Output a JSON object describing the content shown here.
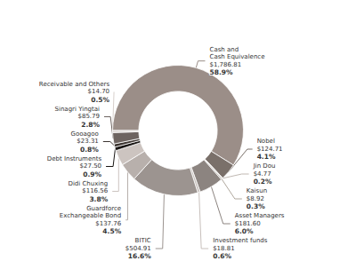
{
  "chart_data": {
    "type": "pie",
    "categories": [
      "Cash and\nCash Equivalence\n$1,786.81",
      "Nobel\n$124.71",
      "Jin Dou\n$4.77",
      "Kaisun\n$8.92",
      "Asset Managers\n$181.60",
      "Investment funds\n$18.81",
      "BITIC\n$504.91",
      "Guardforce\nExchangeable Bond\n$137.76",
      "Didi Chuxing\n$116.56",
      "Debt Instruments\n$27.50",
      "Gooagoo\n$23.31",
      "Sinagri Yingtai\n$85.79",
      "Receivable and Others\n$14.70"
    ],
    "values": [
      58.9,
      4.1,
      0.2,
      0.3,
      6.0,
      0.6,
      16.6,
      4.5,
      3.8,
      0.9,
      0.8,
      2.8,
      0.5
    ],
    "value_labels": [
      "58.9%",
      "4.1%",
      "0.2%",
      "0.3%",
      "6.0%",
      "0.6%",
      "16.6%",
      "4.5%",
      "3.8%",
      "0.9%",
      "0.8%",
      "2.8%",
      "0.5%"
    ],
    "colors": [
      "#9b8e88",
      "#7a706a",
      "#c0b8b2",
      "#b0a89e",
      "#8c8480",
      "#c8c0bc",
      "#9c9490",
      "#b8b0ac",
      "#ccc4c0",
      "#1a1614",
      "#3c3430",
      "#6e6460",
      "#d8d0cc"
    ],
    "data_labels": true
  }
}
